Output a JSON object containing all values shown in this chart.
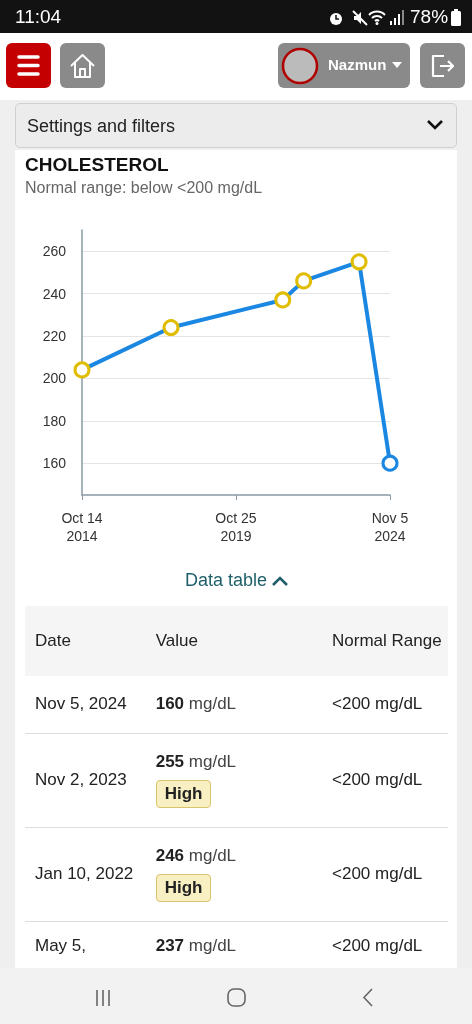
{
  "chart_data": {
    "type": "line",
    "title": "CHOLESTEROL",
    "subtitle": "Normal range: below <200 mg/dL",
    "x": [
      "2014-10-14",
      "2017-09-10",
      "2021-05-05",
      "2022-01-10",
      "2023-11-02",
      "2024-11-05"
    ],
    "values": [
      204,
      224,
      237,
      246,
      255,
      160
    ],
    "color": "#1a87e3",
    "colors": [
      "#e0bd00",
      "#e0bd00",
      "#e0bd00",
      "#e0bd00",
      "#e0bd00",
      "#1a87e3"
    ],
    "xlim": [
      "2014-10-14",
      "2024-11-05"
    ],
    "xticks": [
      {
        "value": "2014-10-14",
        "label": "Oct 14\n2014"
      },
      {
        "value": "2019-10-25",
        "label": "Oct 25\n2019"
      },
      {
        "value": "2024-11-05",
        "label": "Nov 5\n2024"
      }
    ],
    "ylim": [
      145,
      270
    ],
    "yticks": [
      160,
      180,
      200,
      220,
      240,
      260
    ],
    "grid": "y",
    "marker": "circle",
    "annotations": [
      "Settings and filters",
      "Data table",
      "Date",
      "Value",
      "Normal Range",
      "mg/dL",
      "High",
      "<200 mg/dL",
      "Nov 5, 2024",
      "160",
      "Nov 2, 2023",
      "255",
      "Jan 10, 2022",
      "246",
      "May 5,",
      "237",
      "11:04",
      "78%",
      "Nazmun"
    ]
  }
}
